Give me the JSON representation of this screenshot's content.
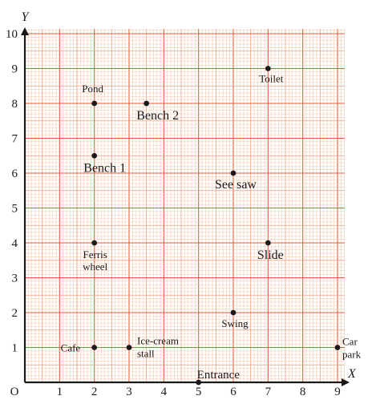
{
  "chart_data": {
    "type": "scatter",
    "title": "",
    "xlabel": "X",
    "ylabel": "Y",
    "origin_label": "O",
    "xlim": [
      0,
      9
    ],
    "ylim": [
      0,
      10
    ],
    "x_ticks": [
      1,
      2,
      3,
      4,
      5,
      6,
      7,
      8,
      9
    ],
    "y_ticks": [
      1,
      2,
      3,
      4,
      5,
      6,
      7,
      8,
      9,
      10
    ],
    "grid": true,
    "points": [
      {
        "label": "Pond",
        "x": 2,
        "y": 8
      },
      {
        "label": "Bench 2",
        "x": 3.5,
        "y": 8
      },
      {
        "label": "Toilet",
        "x": 7,
        "y": 9
      },
      {
        "label": "Bench 1",
        "x": 2,
        "y": 6.5
      },
      {
        "label": "See saw",
        "x": 6,
        "y": 6
      },
      {
        "label": "Ferris wheel",
        "x": 2,
        "y": 4
      },
      {
        "label": "Slide",
        "x": 7,
        "y": 4
      },
      {
        "label": "Swing",
        "x": 6,
        "y": 2
      },
      {
        "label": "Cafe",
        "x": 2,
        "y": 1
      },
      {
        "label": "Ice-cream stall",
        "x": 3,
        "y": 1
      },
      {
        "label": "Car park",
        "x": 9,
        "y": 1
      },
      {
        "label": "Entrance",
        "x": 5,
        "y": 0
      }
    ]
  },
  "colors": {
    "minor_grid": "#f6c4a8",
    "mid_grid": "#ef9e7e",
    "major_grid": "#e0603c",
    "axis": "#1a1a1a",
    "point": "#1a1a1a",
    "text": "#1a1a1a"
  }
}
